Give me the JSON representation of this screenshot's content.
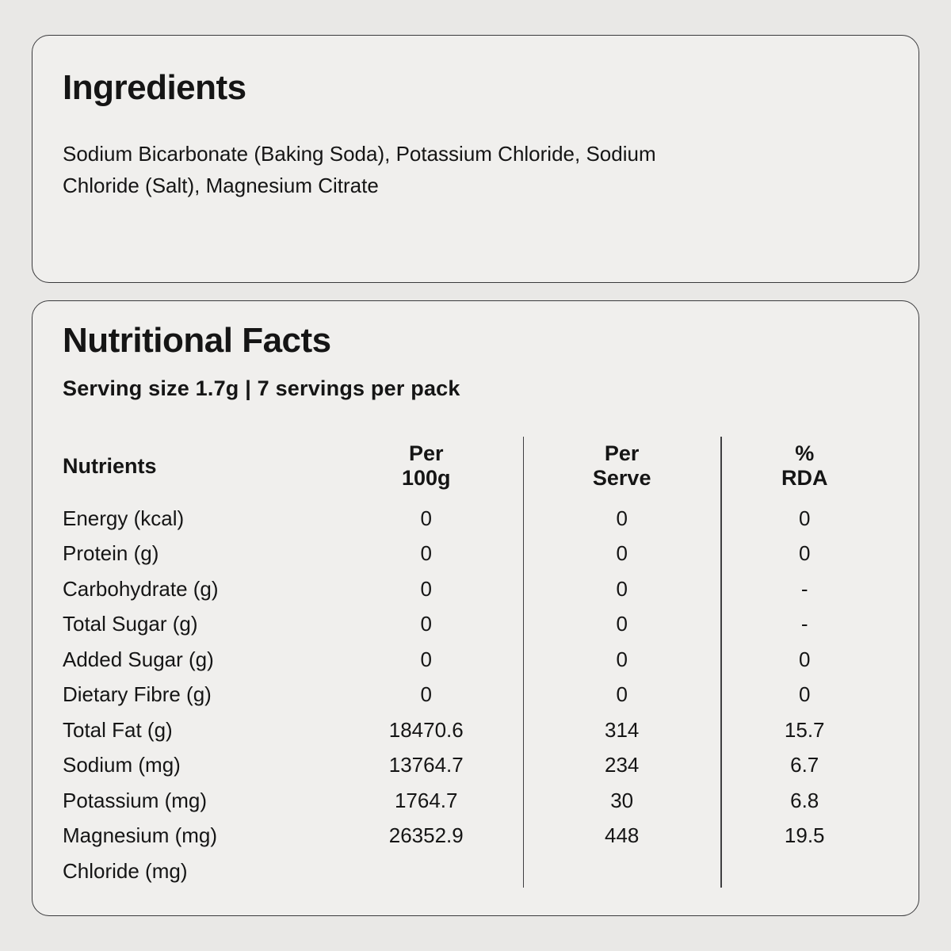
{
  "colors": {
    "page_background": "#e9e8e6",
    "card_background": "#f0efed",
    "card_border": "#3a3a3c",
    "text": "#151515",
    "divider": "#3f3f41"
  },
  "ingredients_card": {
    "title": "Ingredients",
    "text": "Sodium Bicarbonate (Baking Soda), Potassium Chloride, Sodium Chloride (Salt), Magnesium Citrate"
  },
  "nutrition_card": {
    "title": "Nutritional Facts",
    "serving_info": "Serving size 1.7g | 7 servings per pack",
    "table": {
      "headers": {
        "nutrients": "Nutrients",
        "per_100g": {
          "line1": "Per",
          "line2": "100g"
        },
        "per_serve": {
          "line1": "Per",
          "line2": "Serve"
        },
        "rda": {
          "line1": "%",
          "line2": "RDA"
        }
      },
      "rows": [
        {
          "label": "Energy (kcal)",
          "per_100g": "0",
          "per_serve": "0",
          "rda": "0"
        },
        {
          "label": "Protein (g)",
          "per_100g": "0",
          "per_serve": "0",
          "rda": "0"
        },
        {
          "label": "Carbohydrate (g)",
          "per_100g": "0",
          "per_serve": "0",
          "rda": "-"
        },
        {
          "label": "Total Sugar (g)",
          "per_100g": "0",
          "per_serve": "0",
          "rda": "-"
        },
        {
          "label": "Added Sugar (g)",
          "per_100g": "0",
          "per_serve": "0",
          "rda": "0"
        },
        {
          "label": "Dietary Fibre (g)",
          "per_100g": "0",
          "per_serve": "0",
          "rda": "0"
        },
        {
          "label": "Total Fat (g)",
          "per_100g": "18470.6",
          "per_serve": "314",
          "rda": "15.7"
        },
        {
          "label": "Sodium (mg)",
          "per_100g": "13764.7",
          "per_serve": "234",
          "rda": "6.7"
        },
        {
          "label": "Potassium (mg)",
          "per_100g": "1764.7",
          "per_serve": "30",
          "rda": "6.8"
        },
        {
          "label": "Magnesium (mg)",
          "per_100g": "26352.9",
          "per_serve": "448",
          "rda": "19.5"
        },
        {
          "label": "Chloride (mg)",
          "per_100g": "",
          "per_serve": "",
          "rda": ""
        }
      ]
    }
  }
}
